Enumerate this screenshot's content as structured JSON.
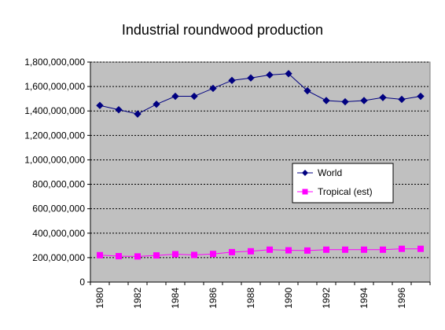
{
  "chart_data": {
    "type": "line",
    "title": "Industrial roundwood production",
    "xlabel": "",
    "ylabel": "",
    "x": [
      1980,
      1981,
      1982,
      1983,
      1984,
      1985,
      1986,
      1987,
      1988,
      1989,
      1990,
      1991,
      1992,
      1993,
      1994,
      1995,
      1996,
      1997
    ],
    "x_tick_labels": [
      "1980",
      "1982",
      "1984",
      "1986",
      "1988",
      "1990",
      "1992",
      "1994",
      "1996"
    ],
    "y_tick_labels": [
      "0",
      "200,000,000",
      "400,000,000",
      "600,000,000",
      "800,000,000",
      "1,000,000,000",
      "1,200,000,000",
      "1,400,000,000",
      "1,600,000,000",
      "1,800,000,000"
    ],
    "ylim": [
      0,
      1800000000
    ],
    "grid": true,
    "legend_position": "middle-right",
    "plot_background": "#c0c0c0",
    "series": [
      {
        "name": "World",
        "color": "#000080",
        "marker": "diamond",
        "values": [
          1445000000,
          1410000000,
          1375000000,
          1455000000,
          1520000000,
          1520000000,
          1585000000,
          1650000000,
          1670000000,
          1695000000,
          1705000000,
          1565000000,
          1485000000,
          1475000000,
          1485000000,
          1510000000,
          1495000000,
          1520000000
        ]
      },
      {
        "name": "Tropical (est)",
        "color": "#ff00ff",
        "marker": "square",
        "values": [
          220000000,
          212000000,
          210000000,
          218000000,
          228000000,
          222000000,
          230000000,
          245000000,
          252000000,
          265000000,
          260000000,
          258000000,
          265000000,
          265000000,
          265000000,
          265000000,
          272000000,
          272000000
        ]
      }
    ]
  }
}
